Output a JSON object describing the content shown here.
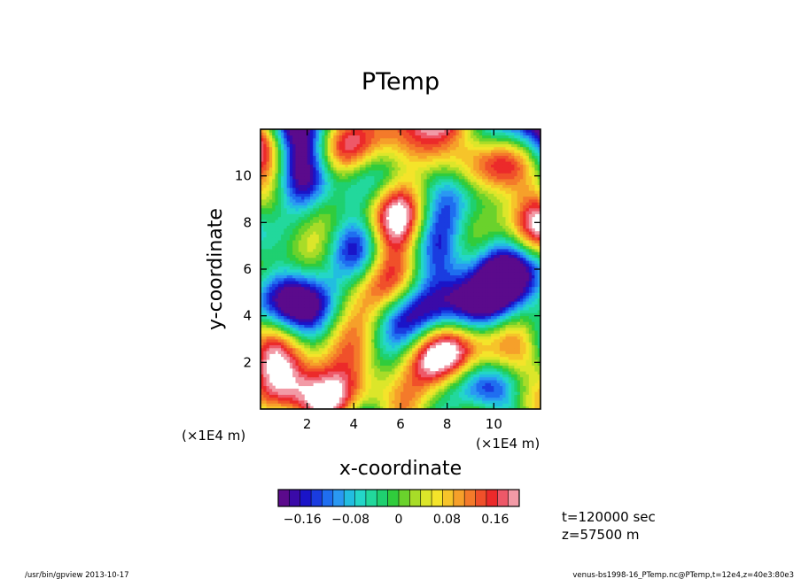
{
  "chart_data": {
    "type": "heatmap",
    "title": "PTemp",
    "xlabel": "x-coordinate",
    "ylabel": "y-coordinate",
    "x_unit_note": "(×1E4 m)",
    "y_unit_note": "(×1E4 m)",
    "xlim": [
      0,
      12
    ],
    "ylim": [
      0,
      12
    ],
    "x_ticks": [
      2,
      4,
      6,
      8,
      10
    ],
    "y_ticks": [
      2,
      4,
      6,
      8,
      10
    ],
    "colorbar": {
      "range": [
        -0.2,
        0.2
      ],
      "ticks": [
        -0.16,
        -0.08,
        0,
        0.08,
        0.16
      ],
      "tick_labels": [
        "−0.16",
        "−0.08",
        "0",
        "0.08",
        "0.16"
      ],
      "colors": [
        "#5b0a8c",
        "#3a0aa8",
        "#1a14c8",
        "#1a3ce0",
        "#1f6ef0",
        "#2a98f2",
        "#22bde0",
        "#24d6c8",
        "#22d89c",
        "#1fd070",
        "#30cc3c",
        "#6ad22c",
        "#a8dc28",
        "#dce62a",
        "#f4e42a",
        "#f6c42a",
        "#f6a02a",
        "#f47a2a",
        "#f0502a",
        "#ec2a2a",
        "#ee5868",
        "#f29aa6"
      ]
    },
    "annotations": {
      "time": "t=120000 sec",
      "height": "z=57500 m"
    }
  },
  "footer": {
    "left": "/usr/bin/gpview   2013-10-17",
    "right": "venus-bs1998-16_PTemp.nc@PTemp,t=12e4,z=40e3:80e3"
  },
  "colors": {
    "axis": "#000000",
    "background": "#ffffff"
  }
}
